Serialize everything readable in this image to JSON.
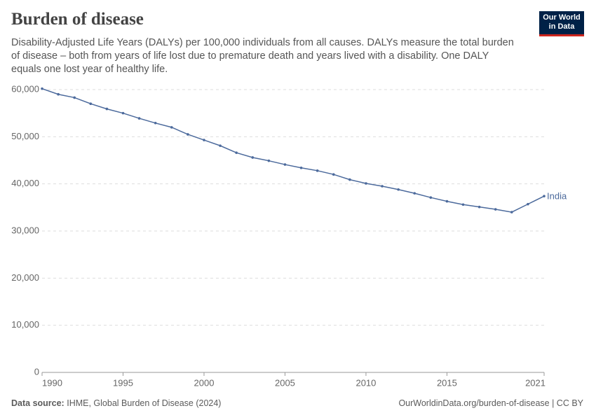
{
  "chart_data": {
    "type": "line",
    "title": "Burden of disease",
    "subtitle": "Disability-Adjusted Life Years (DALYs) per 100,000 individuals from all causes. DALYs measure the total burden of disease – both from years of life lost due to premature death and years lived with a disability. One DALY equals one lost year of healthy life.",
    "logo": [
      "Our World",
      "in Data"
    ],
    "source_label": "Data source:",
    "source": "IHME, Global Burden of Disease (2024)",
    "footer": "OurWorldinData.org/burden-of-disease | CC BY",
    "x": [
      1990,
      1991,
      1992,
      1993,
      1994,
      1995,
      1996,
      1997,
      1998,
      1999,
      2000,
      2001,
      2002,
      2003,
      2004,
      2005,
      2006,
      2007,
      2008,
      2009,
      2010,
      2011,
      2012,
      2013,
      2014,
      2015,
      2016,
      2017,
      2018,
      2019,
      2020,
      2021
    ],
    "series": [
      {
        "name": "India",
        "color": "#4c6a9c",
        "values": [
          60200,
          59000,
          58300,
          57000,
          55900,
          55000,
          53900,
          52900,
          52000,
          50500,
          49300,
          48100,
          46600,
          45600,
          44900,
          44100,
          43400,
          42800,
          42000,
          40900,
          40100,
          39500,
          38800,
          38000,
          37100,
          36300,
          35600,
          35100,
          34600,
          34000,
          35700,
          37400
        ]
      }
    ],
    "xlim": [
      1990,
      2021
    ],
    "xticks": [
      1990,
      1995,
      2000,
      2005,
      2010,
      2015,
      2021
    ],
    "ylim": [
      0,
      60000
    ],
    "yticks": [
      0,
      {
        "value": 10000,
        "label": "10,000"
      },
      {
        "value": 20000,
        "label": "20,000"
      },
      {
        "value": 30000,
        "label": "30,000"
      },
      {
        "value": 40000,
        "label": "40,000"
      },
      {
        "value": 50000,
        "label": "50,000"
      },
      {
        "value": 60000,
        "label": "60,000"
      }
    ],
    "grid": true
  }
}
